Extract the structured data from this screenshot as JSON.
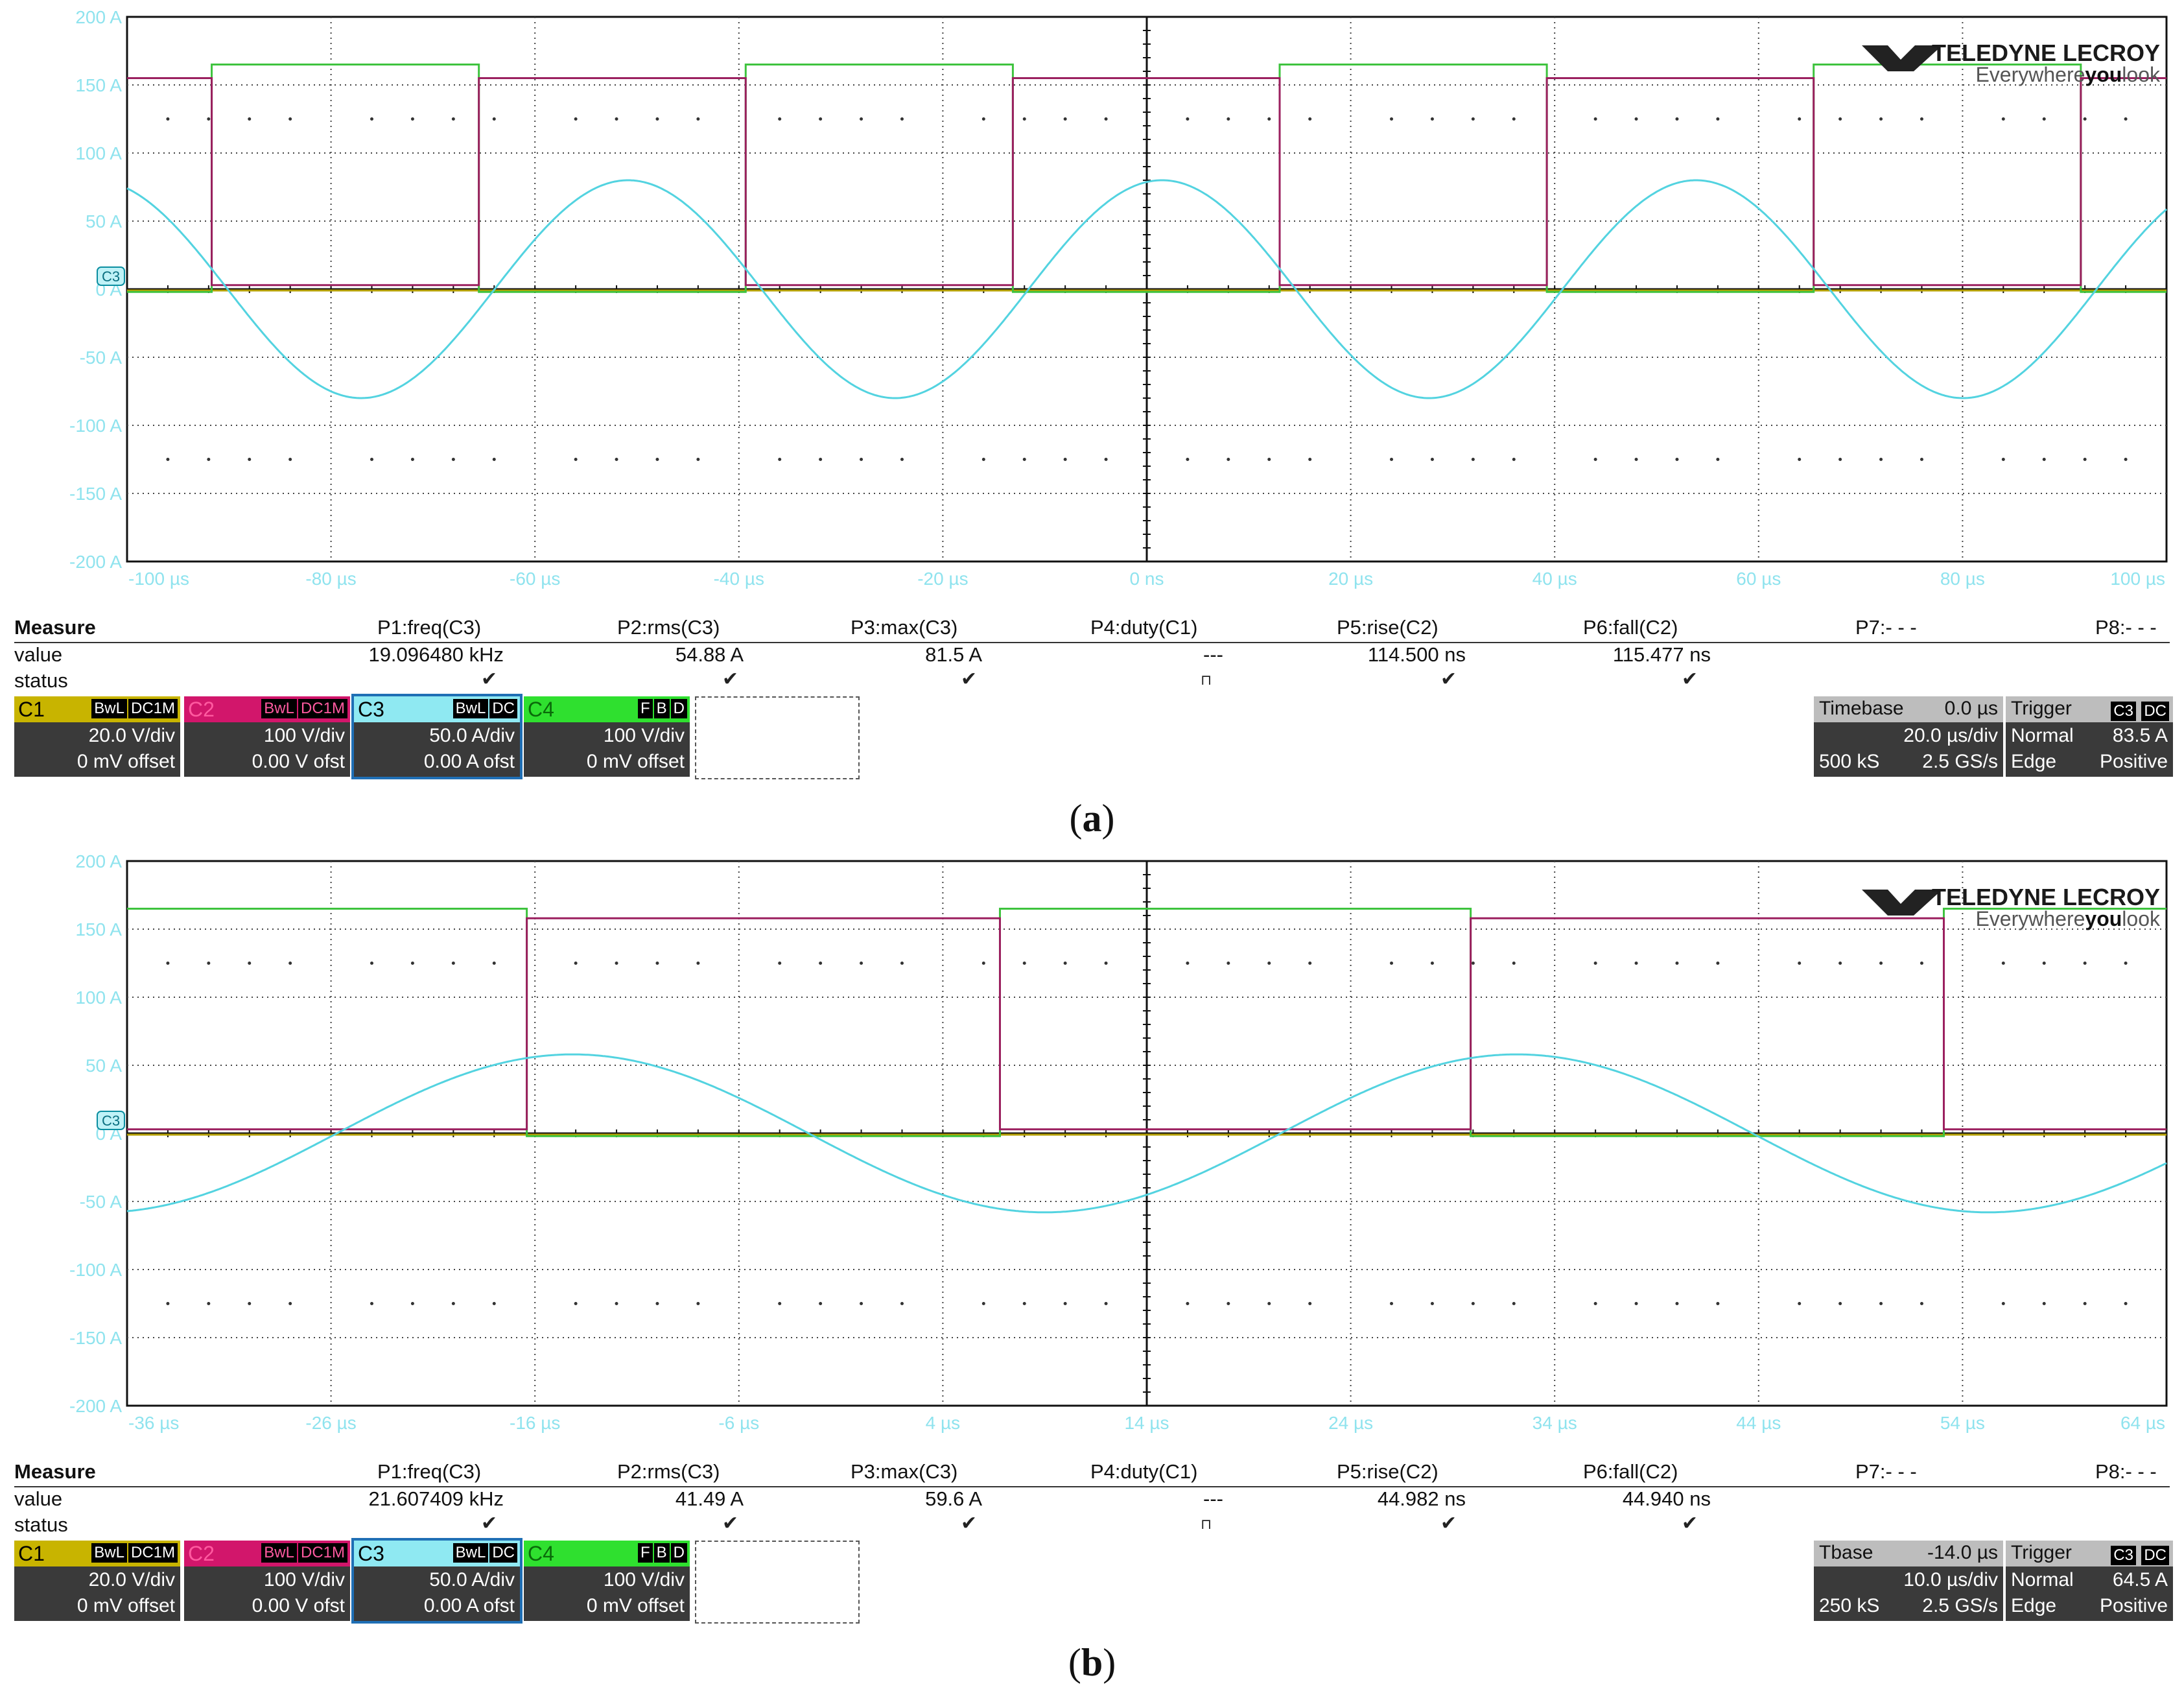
{
  "chart_data": [
    {
      "type": "line",
      "panel": "a",
      "y_axis_labels": [
        "200 A",
        "150 A",
        "100 A",
        "50 A",
        "0 A",
        "-50 A",
        "-100 A",
        "-150 A",
        "-200 A"
      ],
      "ylim": [
        -200,
        200
      ],
      "x_axis_labels": [
        "-100 µs",
        "-80 µs",
        "-60 µs",
        "-40 µs",
        "-20 µs",
        "0 ns",
        "20 µs",
        "40 µs",
        "60 µs",
        "80 µs",
        "100 µs"
      ],
      "xlim": [
        -100,
        100
      ],
      "xunit": "µs",
      "series": [
        {
          "name": "C3",
          "color": "#53d3e0",
          "kind": "sine",
          "amplitude": 80,
          "frequency_khz": 19.09648,
          "phase_ref_us": 1.5
        },
        {
          "name": "C2",
          "color": "#9b1f5f",
          "kind": "square",
          "high": 155,
          "low": 3,
          "period_us": 52.366,
          "first_fall_us": -91.7,
          "first_rise_us": -65.5
        },
        {
          "name": "C4",
          "color": "#3ec33e",
          "kind": "square",
          "high": 165,
          "low": -2,
          "period_us": 52.366,
          "first_rise_us": -91.7,
          "first_fall_us": -65.5
        },
        {
          "name": "C1",
          "color": "#b5a000",
          "kind": "flat",
          "level": 0
        }
      ],
      "channel_marker": "C3"
    },
    {
      "type": "line",
      "panel": "b",
      "y_axis_labels": [
        "200 A",
        "150 A",
        "100 A",
        "50 A",
        "0 A",
        "-50 A",
        "-100 A",
        "-150 A",
        "-200 A"
      ],
      "ylim": [
        -200,
        200
      ],
      "x_axis_labels": [
        "-36 µs",
        "-26 µs",
        "-16 µs",
        "-6 µs",
        "4 µs",
        "14 µs",
        "24 µs",
        "34 µs",
        "44 µs",
        "54 µs",
        "64 µs"
      ],
      "xlim": [
        -36,
        64
      ],
      "xunit": "µs",
      "series": [
        {
          "name": "C3",
          "color": "#53d3e0",
          "kind": "sine",
          "amplitude": 58,
          "frequency_khz": 21.607409,
          "phase_ref_us": 0.0
        },
        {
          "name": "C2",
          "color": "#9b1f5f",
          "kind": "square",
          "high": 158,
          "low": 3,
          "period_us": 46.281,
          "first_rise_us": -16.4,
          "first_fall_us": 6.8
        },
        {
          "name": "C4",
          "color": "#3ec33e",
          "kind": "square",
          "high": 165,
          "low": -2,
          "period_us": 46.281,
          "first_fall_us": -16.4,
          "first_rise_us": 6.8
        },
        {
          "name": "C1",
          "color": "#b5a000",
          "kind": "flat",
          "level": 0
        }
      ],
      "channel_marker": "C3"
    }
  ],
  "logo": {
    "brand": "TELEDYNE LECROY",
    "tagline_pre": "Everywhere",
    "tagline_you": "you",
    "tagline_post": "look"
  },
  "panels": [
    {
      "caption_letter": "a",
      "measure": {
        "title": "Measure",
        "headers": [
          "P1:freq(C3)",
          "P2:rms(C3)",
          "P3:max(C3)",
          "P4:duty(C1)",
          "P5:rise(C2)",
          "P6:fall(C2)",
          "P7:- - -",
          "P8:- - -"
        ],
        "value_label": "value",
        "values": [
          "19.096480 kHz",
          "54.88 A",
          "81.5 A",
          "---",
          "114.500 ns",
          "115.477 ns",
          "",
          ""
        ],
        "status_label": "status"
      },
      "channels": [
        {
          "name": "C1",
          "tags": [
            "BwL",
            "DC1M"
          ],
          "line1": "20.0 V/div",
          "line2": "0 mV offset"
        },
        {
          "name": "C2",
          "tags": [
            "BwL",
            "DC1M"
          ],
          "line1": "100 V/div",
          "line2": "0.00 V ofst"
        },
        {
          "name": "C3",
          "tags": [
            "BwL",
            "DC"
          ],
          "line1": "50.0 A/div",
          "line2": "0.00 A ofst"
        },
        {
          "name": "C4",
          "tags": [
            "F",
            "B",
            "D"
          ],
          "line1": "100 V/div",
          "line2": "0 mV offset"
        }
      ],
      "timebase": {
        "label": "Timebase",
        "delay": "0.0 µs",
        "per_div": "20.0 µs/div",
        "samples": "500 kS",
        "rate": "2.5 GS/s"
      },
      "trigger": {
        "label": "Trigger",
        "tags": [
          "C3",
          "DC"
        ],
        "mode": "Normal",
        "level": "83.5 A",
        "type": "Edge",
        "slope": "Positive"
      }
    },
    {
      "caption_letter": "b",
      "measure": {
        "title": "Measure",
        "headers": [
          "P1:freq(C3)",
          "P2:rms(C3)",
          "P3:max(C3)",
          "P4:duty(C1)",
          "P5:rise(C2)",
          "P6:fall(C2)",
          "P7:- - -",
          "P8:- - -"
        ],
        "value_label": "value",
        "values": [
          "21.607409 kHz",
          "41.49 A",
          "59.6 A",
          "---",
          "44.982 ns",
          "44.940 ns",
          "",
          ""
        ],
        "status_label": "status"
      },
      "channels": [
        {
          "name": "C1",
          "tags": [
            "BwL",
            "DC1M"
          ],
          "line1": "20.0 V/div",
          "line2": "0 mV offset"
        },
        {
          "name": "C2",
          "tags": [
            "BwL",
            "DC1M"
          ],
          "line1": "100 V/div",
          "line2": "0.00 V ofst"
        },
        {
          "name": "C3",
          "tags": [
            "BwL",
            "DC"
          ],
          "line1": "50.0 A/div",
          "line2": "0.00 A ofst"
        },
        {
          "name": "C4",
          "tags": [
            "F",
            "B",
            "D"
          ],
          "line1": "100 V/div",
          "line2": "0 mV offset"
        }
      ],
      "timebase": {
        "label": "Tbase",
        "delay": "-14.0 µs",
        "per_div": "10.0 µs/div",
        "samples": "250 kS",
        "rate": "2.5 GS/s"
      },
      "trigger": {
        "label": "Trigger",
        "tags": [
          "C3",
          "DC"
        ],
        "mode": "Normal",
        "level": "64.5 A",
        "type": "Edge",
        "slope": "Positive"
      }
    }
  ],
  "colors": {
    "c1": "#c8b400",
    "c2": "#d2166b",
    "c3": "#53d3e0",
    "c4": "#2fe02f",
    "selected": "#1f6fb5"
  }
}
